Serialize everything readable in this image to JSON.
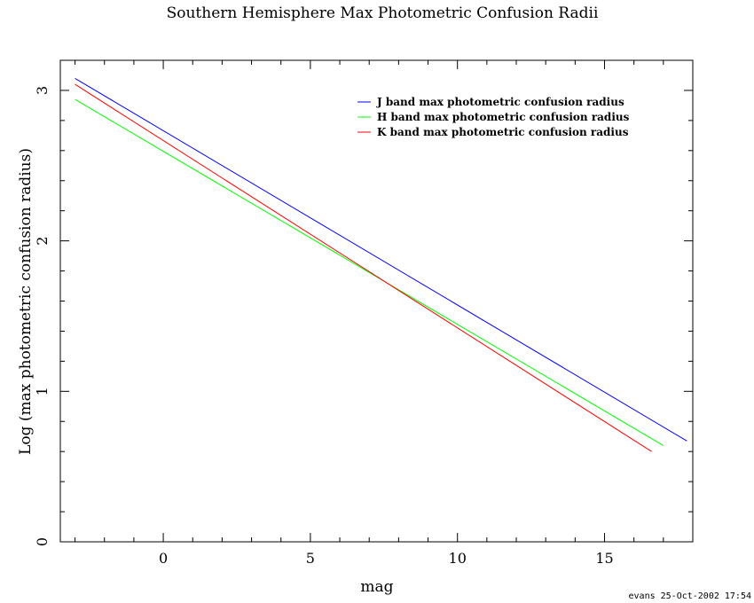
{
  "chart_data": {
    "type": "line",
    "title": "Southern Hemisphere Max Photometric Confusion Radii",
    "xlabel": "mag",
    "ylabel": "Log (max photometric confusion radius)",
    "xlim": [
      -3.5,
      18
    ],
    "ylim": [
      0,
      3.2
    ],
    "x_ticks": [
      0,
      5,
      10,
      15
    ],
    "x_tick_labels": [
      "0",
      "5",
      "10",
      "15"
    ],
    "x_minor_step": 1,
    "y_ticks": [
      0,
      1,
      2,
      3
    ],
    "y_tick_labels": [
      "0",
      "1",
      "2",
      "3"
    ],
    "y_minor_step": 0.2,
    "grid": false,
    "legend_position": "top-right",
    "series": [
      {
        "name": "J band max photometric confusion radius",
        "color": "#0000ff",
        "x": [
          -3,
          17.8
        ],
        "y": [
          3.08,
          0.67
        ]
      },
      {
        "name": "H band max photometric confusion radius",
        "color": "#00ff00",
        "x": [
          -3,
          17
        ],
        "y": [
          2.94,
          0.64
        ]
      },
      {
        "name": "K band max photometric confusion radius",
        "color": "#ff0000",
        "x": [
          -3,
          16.6
        ],
        "y": [
          3.04,
          0.6
        ]
      }
    ]
  },
  "footer": {
    "stamp": "evans 25-Oct-2002 17:54"
  }
}
